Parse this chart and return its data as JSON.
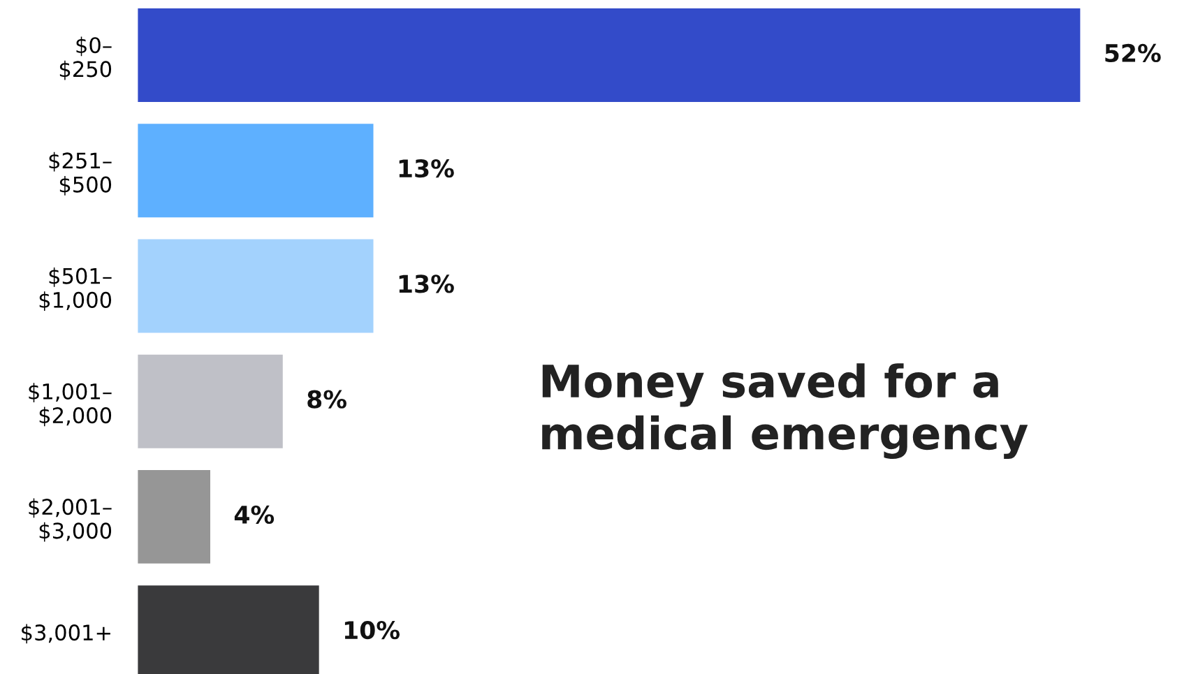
{
  "chart_data": {
    "type": "bar",
    "orientation": "horizontal",
    "title": "Money saved for a\nmedical emergency",
    "categories": [
      "$0–\n$250",
      "$251–\n$500",
      "$501–\n$1,000",
      "$1,001–\n$2,000",
      "$2,001–\n$3,000",
      "$3,001+"
    ],
    "values": [
      52,
      13,
      13,
      8,
      4,
      10
    ],
    "colors": [
      "#334bc9",
      "#5eb0ff",
      "#a3d2fd",
      "#bfc0c7",
      "#969696",
      "#3a3a3c"
    ],
    "value_labels": [
      "52%",
      "13%",
      "13%",
      "8%",
      "4%",
      "10%"
    ]
  }
}
